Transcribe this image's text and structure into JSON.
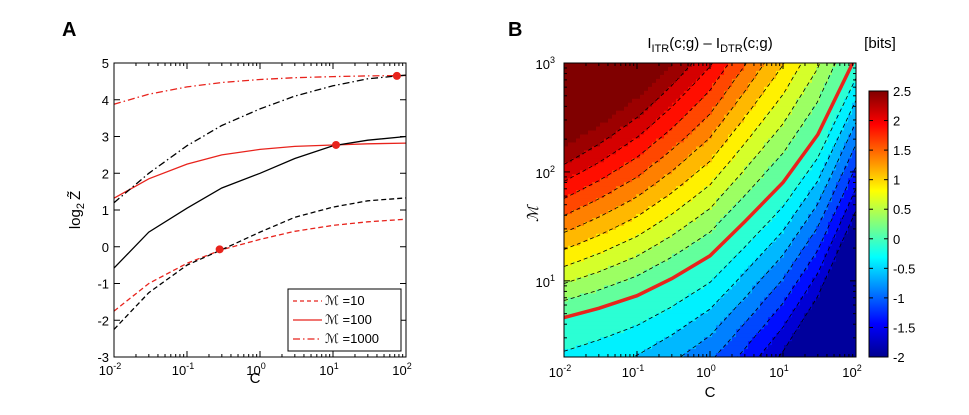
{
  "chart_data": [
    {
      "type": "line",
      "panel_label": "A",
      "title": "",
      "xlabel": "C",
      "ylabel": "log₂ Z̃",
      "ylabel_parts": {
        "base": "log",
        "sub": "2",
        "var": "Z̃"
      },
      "xscale": "log",
      "xlim": [
        0.01,
        100
      ],
      "ylim": [
        -3,
        5
      ],
      "x_tick_labels": [
        {
          "base": "10",
          "exp": "-2"
        },
        {
          "base": "10",
          "exp": "-1"
        },
        {
          "base": "10",
          "exp": "0"
        },
        {
          "base": "10",
          "exp": "1"
        },
        {
          "base": "10",
          "exp": "2"
        }
      ],
      "y_tick_labels": [
        "-3",
        "-2",
        "-1",
        "0",
        "1",
        "2",
        "3",
        "4",
        "5"
      ],
      "legend": {
        "position": "bottom-right",
        "entries": [
          {
            "label": "ℳ =10",
            "style": "dashed",
            "color": "#e8231c"
          },
          {
            "label": "ℳ =100",
            "style": "solid",
            "color": "#e8231c"
          },
          {
            "label": "ℳ =1000",
            "style": "dashdot",
            "color": "#e8231c"
          }
        ]
      },
      "series": [
        {
          "name": "red M=10 (dashed)",
          "color": "#e8231c",
          "style": "dashed",
          "x": [
            0.01,
            0.03,
            0.1,
            0.3,
            1,
            3,
            10,
            30,
            100
          ],
          "y": [
            -1.75,
            -1.0,
            -0.45,
            -0.08,
            0.2,
            0.42,
            0.58,
            0.68,
            0.75
          ]
        },
        {
          "name": "black M=10 (dashed)",
          "color": "#000000",
          "style": "dashed",
          "x": [
            0.01,
            0.03,
            0.1,
            0.3,
            1,
            3,
            10,
            30,
            100
          ],
          "y": [
            -2.25,
            -1.25,
            -0.5,
            -0.08,
            0.4,
            0.8,
            1.08,
            1.25,
            1.33
          ]
        },
        {
          "name": "red M=100 (solid)",
          "color": "#e8231c",
          "style": "solid",
          "x": [
            0.01,
            0.03,
            0.1,
            0.3,
            1,
            3,
            10,
            30,
            100
          ],
          "y": [
            1.32,
            1.85,
            2.25,
            2.5,
            2.65,
            2.73,
            2.77,
            2.8,
            2.82
          ]
        },
        {
          "name": "black M=100 (solid)",
          "color": "#000000",
          "style": "solid",
          "x": [
            0.01,
            0.03,
            0.1,
            0.3,
            1,
            3,
            10,
            30,
            100
          ],
          "y": [
            -0.58,
            0.4,
            1.05,
            1.6,
            2.0,
            2.4,
            2.75,
            2.9,
            3.0
          ]
        },
        {
          "name": "red M=1000 (dashdot)",
          "color": "#e8231c",
          "style": "dashdot",
          "x": [
            0.01,
            0.03,
            0.1,
            0.3,
            1,
            3,
            10,
            30,
            100
          ],
          "y": [
            3.88,
            4.15,
            4.35,
            4.47,
            4.55,
            4.6,
            4.63,
            4.65,
            4.66
          ]
        },
        {
          "name": "black M=1000 (dashdot)",
          "color": "#000000",
          "style": "dashdot",
          "x": [
            0.01,
            0.03,
            0.1,
            0.3,
            1,
            3,
            10,
            30,
            100
          ],
          "y": [
            1.2,
            2.0,
            2.75,
            3.3,
            3.75,
            4.1,
            4.38,
            4.57,
            4.67
          ]
        }
      ],
      "markers": [
        {
          "x": 0.28,
          "y": -0.07,
          "color": "#e8231c"
        },
        {
          "x": 11,
          "y": 2.77,
          "color": "#e8231c"
        },
        {
          "x": 75,
          "y": 4.65,
          "color": "#e8231c"
        }
      ]
    },
    {
      "type": "heatmap",
      "panel_label": "B",
      "title_parts": {
        "a": "I",
        "a_sub": "ITR",
        "a_arg": "(c;g) – I",
        "b_sub": "DTR",
        "b_arg": "(c;g)"
      },
      "title": "I_ITR(c;g) – I_DTR(c;g)",
      "xlabel": "C",
      "ylabel": "ℳ",
      "xscale": "log",
      "yscale": "log",
      "xlim": [
        0.01,
        100
      ],
      "ylim": [
        2,
        1000
      ],
      "x_tick_labels": [
        {
          "base": "10",
          "exp": "-2"
        },
        {
          "base": "10",
          "exp": "-1"
        },
        {
          "base": "10",
          "exp": "0"
        },
        {
          "base": "10",
          "exp": "1"
        },
        {
          "base": "10",
          "exp": "2"
        }
      ],
      "y_tick_labels": [
        {
          "base": "10",
          "exp": "1"
        },
        {
          "base": "10",
          "exp": "2"
        },
        {
          "base": "10",
          "exp": "3"
        }
      ],
      "colorbar": {
        "label": "[bits]",
        "range": [
          -2,
          2.5
        ],
        "tick_labels": [
          "2.5",
          "2",
          "1.5",
          "1",
          "0.5",
          "0",
          "-0.5",
          "-1",
          "-1.5",
          "-2"
        ]
      },
      "contour_step": 0.25,
      "zero_contour_color": "#e8231c",
      "zero_contour": {
        "x": [
          0.01,
          0.03,
          0.1,
          0.3,
          1,
          3,
          10,
          30,
          90
        ],
        "y": [
          4.6,
          5.6,
          7.3,
          10.5,
          17,
          35,
          80,
          220,
          1000
        ]
      },
      "value_range_shown": {
        "min": -1.9,
        "max": 2.5
      }
    }
  ]
}
